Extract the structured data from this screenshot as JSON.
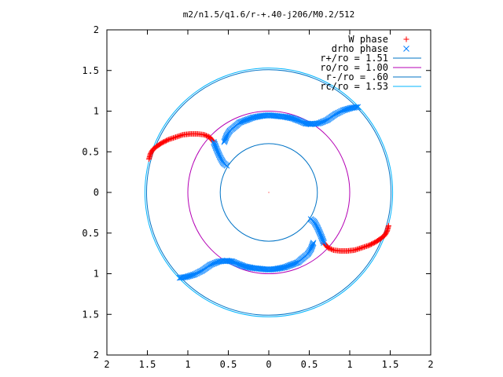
{
  "chart_data": {
    "type": "scatter",
    "title": "m2/n1.5/q1.6/r-+.40-j206/M0.2/512",
    "xlim": [
      -2,
      2
    ],
    "ylim": [
      -2,
      2
    ],
    "x_tick_labels": [
      "2",
      "1.5",
      "1",
      "0.5",
      "0",
      "0.5",
      "1",
      "1.5",
      "2"
    ],
    "y_tick_labels": [
      "2",
      "1.5",
      "1",
      "0.5",
      "0",
      "0.5",
      "1",
      "1.5",
      "2"
    ],
    "legend_position": "top-right",
    "grid": false,
    "colors": {
      "w_phase": "#ff0000",
      "drho_phase": "#0080ff",
      "r_plus": "#0073c6",
      "ro": "#b400b4",
      "r_minus": "#0073c6",
      "rc": "#00b4ff"
    },
    "series": [
      {
        "name": "W phase",
        "kind": "points",
        "marker": "plus",
        "color": "#ff0000",
        "segments": [
          {
            "points": [
              [
                -1.48,
                0.41
              ],
              [
                -1.46,
                0.48
              ],
              [
                -1.43,
                0.53
              ],
              [
                -1.38,
                0.57
              ],
              [
                -1.32,
                0.61
              ],
              [
                -1.24,
                0.65
              ],
              [
                -1.15,
                0.68
              ],
              [
                -1.06,
                0.71
              ],
              [
                -0.97,
                0.72
              ],
              [
                -0.88,
                0.72
              ],
              [
                -0.8,
                0.71
              ],
              [
                -0.73,
                0.68
              ],
              [
                -0.68,
                0.62
              ]
            ]
          },
          {
            "points": [
              [
                1.48,
                -0.41
              ],
              [
                1.46,
                -0.48
              ],
              [
                1.43,
                -0.53
              ],
              [
                1.38,
                -0.57
              ],
              [
                1.32,
                -0.61
              ],
              [
                1.24,
                -0.65
              ],
              [
                1.15,
                -0.68
              ],
              [
                1.06,
                -0.71
              ],
              [
                0.97,
                -0.72
              ],
              [
                0.88,
                -0.72
              ],
              [
                0.8,
                -0.71
              ],
              [
                0.73,
                -0.68
              ],
              [
                0.68,
                -0.62
              ]
            ]
          }
        ]
      },
      {
        "name": "drho phase",
        "kind": "points",
        "marker": "cross",
        "color": "#0080ff",
        "segments": [
          {
            "points": [
              [
                -0.68,
                0.62
              ],
              [
                -0.64,
                0.52
              ],
              [
                -0.6,
                0.43
              ],
              [
                -0.56,
                0.36
              ],
              [
                -0.52,
                0.33
              ]
            ]
          },
          {
            "points": [
              [
                0.52,
                -0.33
              ],
              [
                0.56,
                -0.36
              ],
              [
                0.6,
                -0.43
              ],
              [
                0.64,
                -0.52
              ],
              [
                0.68,
                -0.62
              ]
            ]
          },
          {
            "points": [
              [
                -0.55,
                0.62
              ],
              [
                -0.52,
                0.7
              ],
              [
                -0.48,
                0.76
              ],
              [
                -0.43,
                0.8
              ],
              [
                -0.36,
                0.86
              ],
              [
                -0.28,
                0.89
              ],
              [
                -0.2,
                0.92
              ],
              [
                -0.1,
                0.94
              ],
              [
                0.0,
                0.95
              ],
              [
                0.1,
                0.94
              ],
              [
                0.2,
                0.93
              ],
              [
                0.3,
                0.91
              ],
              [
                0.38,
                0.88
              ],
              [
                0.45,
                0.85
              ],
              [
                0.52,
                0.84
              ]
            ]
          },
          {
            "points": [
              [
                0.52,
                0.84
              ],
              [
                0.62,
                0.85
              ],
              [
                0.72,
                0.89
              ],
              [
                0.82,
                0.96
              ],
              [
                0.92,
                1.01
              ],
              [
                1.02,
                1.04
              ],
              [
                1.1,
                1.05
              ]
            ]
          },
          {
            "points": [
              [
                0.55,
                -0.62
              ],
              [
                0.52,
                -0.7
              ],
              [
                0.48,
                -0.76
              ],
              [
                0.43,
                -0.8
              ],
              [
                0.36,
                -0.86
              ],
              [
                0.28,
                -0.89
              ],
              [
                0.2,
                -0.92
              ],
              [
                0.1,
                -0.94
              ],
              [
                0.0,
                -0.95
              ],
              [
                -0.1,
                -0.94
              ],
              [
                -0.2,
                -0.93
              ],
              [
                -0.3,
                -0.91
              ],
              [
                -0.38,
                -0.88
              ],
              [
                -0.45,
                -0.85
              ],
              [
                -0.52,
                -0.84
              ]
            ]
          },
          {
            "points": [
              [
                -0.52,
                -0.84
              ],
              [
                -0.62,
                -0.85
              ],
              [
                -0.72,
                -0.89
              ],
              [
                -0.82,
                -0.96
              ],
              [
                -0.92,
                -1.01
              ],
              [
                -1.02,
                -1.04
              ],
              [
                -1.1,
                -1.05
              ]
            ]
          }
        ]
      },
      {
        "name": "r+/ro = 1.51",
        "kind": "circle",
        "radius": 1.51,
        "color": "#0073c6"
      },
      {
        "name": "ro/ro = 1.00",
        "kind": "circle",
        "radius": 1.0,
        "color": "#b400b4"
      },
      {
        "name": "r-/ro = .60",
        "kind": "circle",
        "radius": 0.6,
        "color": "#0073c6"
      },
      {
        "name": "rc/ro = 1.53",
        "kind": "circle",
        "radius": 1.53,
        "color": "#00b4ff"
      }
    ]
  }
}
